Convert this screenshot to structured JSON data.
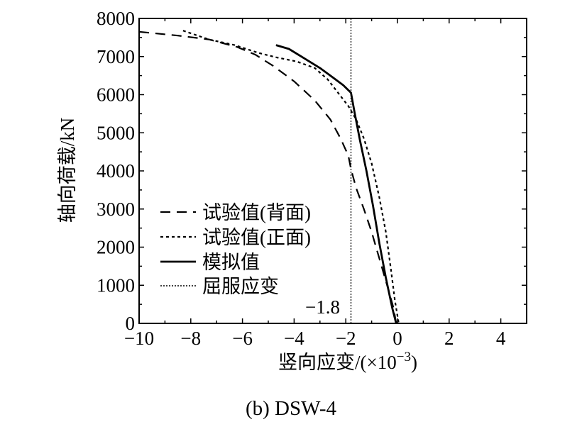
{
  "caption": "(b) DSW-4",
  "chart_data": {
    "type": "line",
    "xlabel": "竖向应变/(×10",
    "xlabel_exp": "−3",
    "xlabel_tail": ")",
    "ylabel": "轴向荷载/kN",
    "xlim": [
      -10,
      5
    ],
    "ylim": [
      0,
      8000
    ],
    "x_ticks": [
      -10,
      -8,
      -6,
      -4,
      -2,
      0,
      2,
      4
    ],
    "x_tick_labels": [
      "−10",
      "−8",
      "−6",
      "−4",
      "−2",
      "0",
      "2",
      "4"
    ],
    "y_ticks": [
      0,
      1000,
      2000,
      3000,
      4000,
      5000,
      6000,
      7000,
      8000
    ],
    "y_tick_labels": [
      "0",
      "1000",
      "2000",
      "3000",
      "4000",
      "5000",
      "6000",
      "7000",
      "8000"
    ],
    "grid": false,
    "legend_position": "lower-left",
    "annotation": {
      "text": "−1.8",
      "x": -1.8
    },
    "series": [
      {
        "name": "试验值(背面)",
        "style": "dashed",
        "color": "#000000",
        "points": [
          [
            -10,
            7650
          ],
          [
            -8.5,
            7550
          ],
          [
            -7.3,
            7450
          ],
          [
            -6.2,
            7250
          ],
          [
            -5.5,
            7050
          ],
          [
            -4.8,
            6750
          ],
          [
            -4.0,
            6350
          ],
          [
            -3.2,
            5850
          ],
          [
            -2.6,
            5350
          ],
          [
            -2.2,
            4850
          ],
          [
            -1.9,
            4400
          ],
          [
            -1.8,
            4050
          ],
          [
            -1.6,
            3550
          ],
          [
            -1.3,
            3000
          ],
          [
            -1.0,
            2400
          ],
          [
            -0.7,
            1700
          ],
          [
            -0.4,
            1000
          ],
          [
            -0.15,
            400
          ],
          [
            -0.05,
            0
          ]
        ]
      },
      {
        "name": "试验值(正面)",
        "style": "dotted",
        "color": "#000000",
        "points": [
          [
            -8.3,
            7680
          ],
          [
            -7.3,
            7450
          ],
          [
            -6.3,
            7300
          ],
          [
            -5.4,
            7100
          ],
          [
            -4.7,
            6980
          ],
          [
            -3.9,
            6870
          ],
          [
            -3.2,
            6700
          ],
          [
            -2.7,
            6400
          ],
          [
            -2.3,
            6050
          ],
          [
            -1.9,
            5700
          ],
          [
            -1.6,
            5350
          ],
          [
            -1.3,
            4850
          ],
          [
            -1.0,
            4200
          ],
          [
            -0.7,
            3300
          ],
          [
            -0.45,
            2400
          ],
          [
            -0.25,
            1400
          ],
          [
            -0.1,
            600
          ],
          [
            0.05,
            0
          ]
        ]
      },
      {
        "name": "模拟值",
        "style": "solid",
        "color": "#000000",
        "points": [
          [
            -4.7,
            7300
          ],
          [
            -4.2,
            7200
          ],
          [
            -3.6,
            6950
          ],
          [
            -3.0,
            6700
          ],
          [
            -2.5,
            6450
          ],
          [
            -2.1,
            6250
          ],
          [
            -1.8,
            6050
          ],
          [
            -1.65,
            5500
          ],
          [
            -1.45,
            4800
          ],
          [
            -1.2,
            4000
          ],
          [
            -0.95,
            3100
          ],
          [
            -0.7,
            2100
          ],
          [
            -0.45,
            1200
          ],
          [
            -0.2,
            400
          ],
          [
            -0.05,
            0
          ]
        ]
      },
      {
        "name": "屈服应变",
        "style": "vertical-dotted",
        "color": "#000000",
        "points": [
          [
            -1.8,
            0
          ],
          [
            -1.8,
            8000
          ]
        ]
      }
    ]
  }
}
